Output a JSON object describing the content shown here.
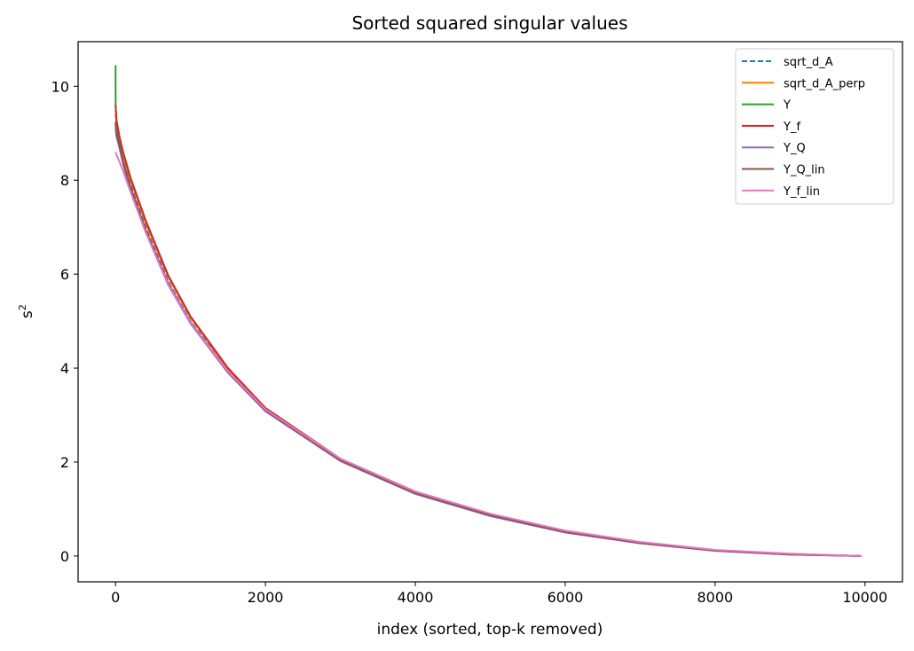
{
  "chart_data": {
    "type": "line",
    "title": "Sorted squared singular values",
    "xlabel": "index (sorted, top-k removed)",
    "ylabel_base": "s",
    "ylabel_sup": "2",
    "xlim": [
      -500,
      10500
    ],
    "ylim": [
      -0.55,
      10.95
    ],
    "xticks": [
      0,
      2000,
      4000,
      6000,
      8000,
      10000
    ],
    "xtick_labels": [
      "0",
      "2000",
      "4000",
      "6000",
      "8000",
      "10000"
    ],
    "yticks": [
      0,
      2,
      4,
      6,
      8,
      10
    ],
    "ytick_labels": [
      "0",
      "2",
      "4",
      "6",
      "8",
      "10"
    ],
    "grid": false,
    "legend_position": "top-right",
    "series": [
      {
        "name": "sqrt_d_A",
        "color": "#1f77b4",
        "dashed": true,
        "x": [
          0,
          50,
          100,
          200,
          400,
          700,
          1000,
          1500,
          2000,
          3000,
          4000,
          5000,
          6000,
          7000,
          8000,
          9000,
          9950
        ],
        "y": [
          9.2,
          8.8,
          8.45,
          7.9,
          7.0,
          5.85,
          5.0,
          3.95,
          3.13,
          2.06,
          1.36,
          0.88,
          0.52,
          0.28,
          0.12,
          0.04,
          0.0
        ]
      },
      {
        "name": "sqrt_d_A_perp",
        "color": "#ff7f0e",
        "dashed": false,
        "x": [
          0,
          50,
          100,
          200,
          400,
          700,
          1000,
          1500,
          2000,
          3000,
          4000,
          5000,
          6000,
          7000,
          8000,
          9000,
          9950
        ],
        "y": [
          9.4,
          8.9,
          8.55,
          8.0,
          7.1,
          5.95,
          5.08,
          3.98,
          3.14,
          2.06,
          1.36,
          0.88,
          0.52,
          0.28,
          0.12,
          0.04,
          0.0
        ]
      },
      {
        "name": "Y",
        "color": "#2ca02c",
        "dashed": false,
        "x": [
          0,
          1,
          10,
          50,
          100,
          200,
          400,
          700,
          1000,
          1500,
          2000,
          3000,
          4000,
          5000,
          6000,
          7000,
          8000,
          9000,
          9950
        ],
        "y": [
          10.45,
          9.6,
          9.3,
          8.9,
          8.6,
          8.05,
          7.15,
          5.98,
          5.1,
          4.0,
          3.15,
          2.07,
          1.37,
          0.89,
          0.53,
          0.29,
          0.12,
          0.04,
          0.0
        ]
      },
      {
        "name": "Y_f",
        "color": "#d62728",
        "dashed": false,
        "x": [
          0,
          10,
          50,
          100,
          200,
          400,
          700,
          1000,
          1500,
          2000,
          3000,
          4000,
          5000,
          6000,
          7000,
          8000,
          9000,
          9950
        ],
        "y": [
          9.6,
          9.3,
          8.95,
          8.6,
          8.05,
          7.15,
          5.98,
          5.1,
          4.0,
          3.15,
          2.07,
          1.37,
          0.89,
          0.53,
          0.29,
          0.12,
          0.04,
          0.0
        ]
      },
      {
        "name": "Y_Q",
        "color": "#9467bd",
        "dashed": false,
        "x": [
          0,
          10,
          50,
          100,
          200,
          400,
          700,
          1000,
          1500,
          2000,
          3000,
          4000,
          5000,
          6000,
          7000,
          8000,
          9000,
          9950
        ],
        "y": [
          9.2,
          8.95,
          8.7,
          8.35,
          7.8,
          6.9,
          5.78,
          4.95,
          3.9,
          3.08,
          2.02,
          1.32,
          0.85,
          0.5,
          0.27,
          0.11,
          0.03,
          0.0
        ]
      },
      {
        "name": "Y_Q_lin",
        "color": "#8c564b",
        "dashed": false,
        "x": [
          0,
          10,
          50,
          100,
          200,
          400,
          700,
          1000,
          1500,
          2000,
          3000,
          4000,
          5000,
          6000,
          7000,
          8000,
          9000,
          9950
        ],
        "y": [
          9.25,
          9.0,
          8.75,
          8.4,
          7.85,
          6.95,
          5.82,
          4.98,
          3.92,
          3.1,
          2.04,
          1.34,
          0.87,
          0.51,
          0.28,
          0.11,
          0.03,
          0.0
        ]
      },
      {
        "name": "Y_f_lin",
        "color": "#e377c2",
        "dashed": false,
        "x": [
          0,
          10,
          50,
          100,
          200,
          400,
          700,
          1000,
          1500,
          2000,
          3000,
          4000,
          5000,
          6000,
          7000,
          8000,
          9000,
          9950
        ],
        "y": [
          8.6,
          8.55,
          8.4,
          8.2,
          7.75,
          6.9,
          5.8,
          4.97,
          3.93,
          3.12,
          2.07,
          1.37,
          0.9,
          0.54,
          0.3,
          0.13,
          0.05,
          0.0
        ]
      }
    ]
  }
}
